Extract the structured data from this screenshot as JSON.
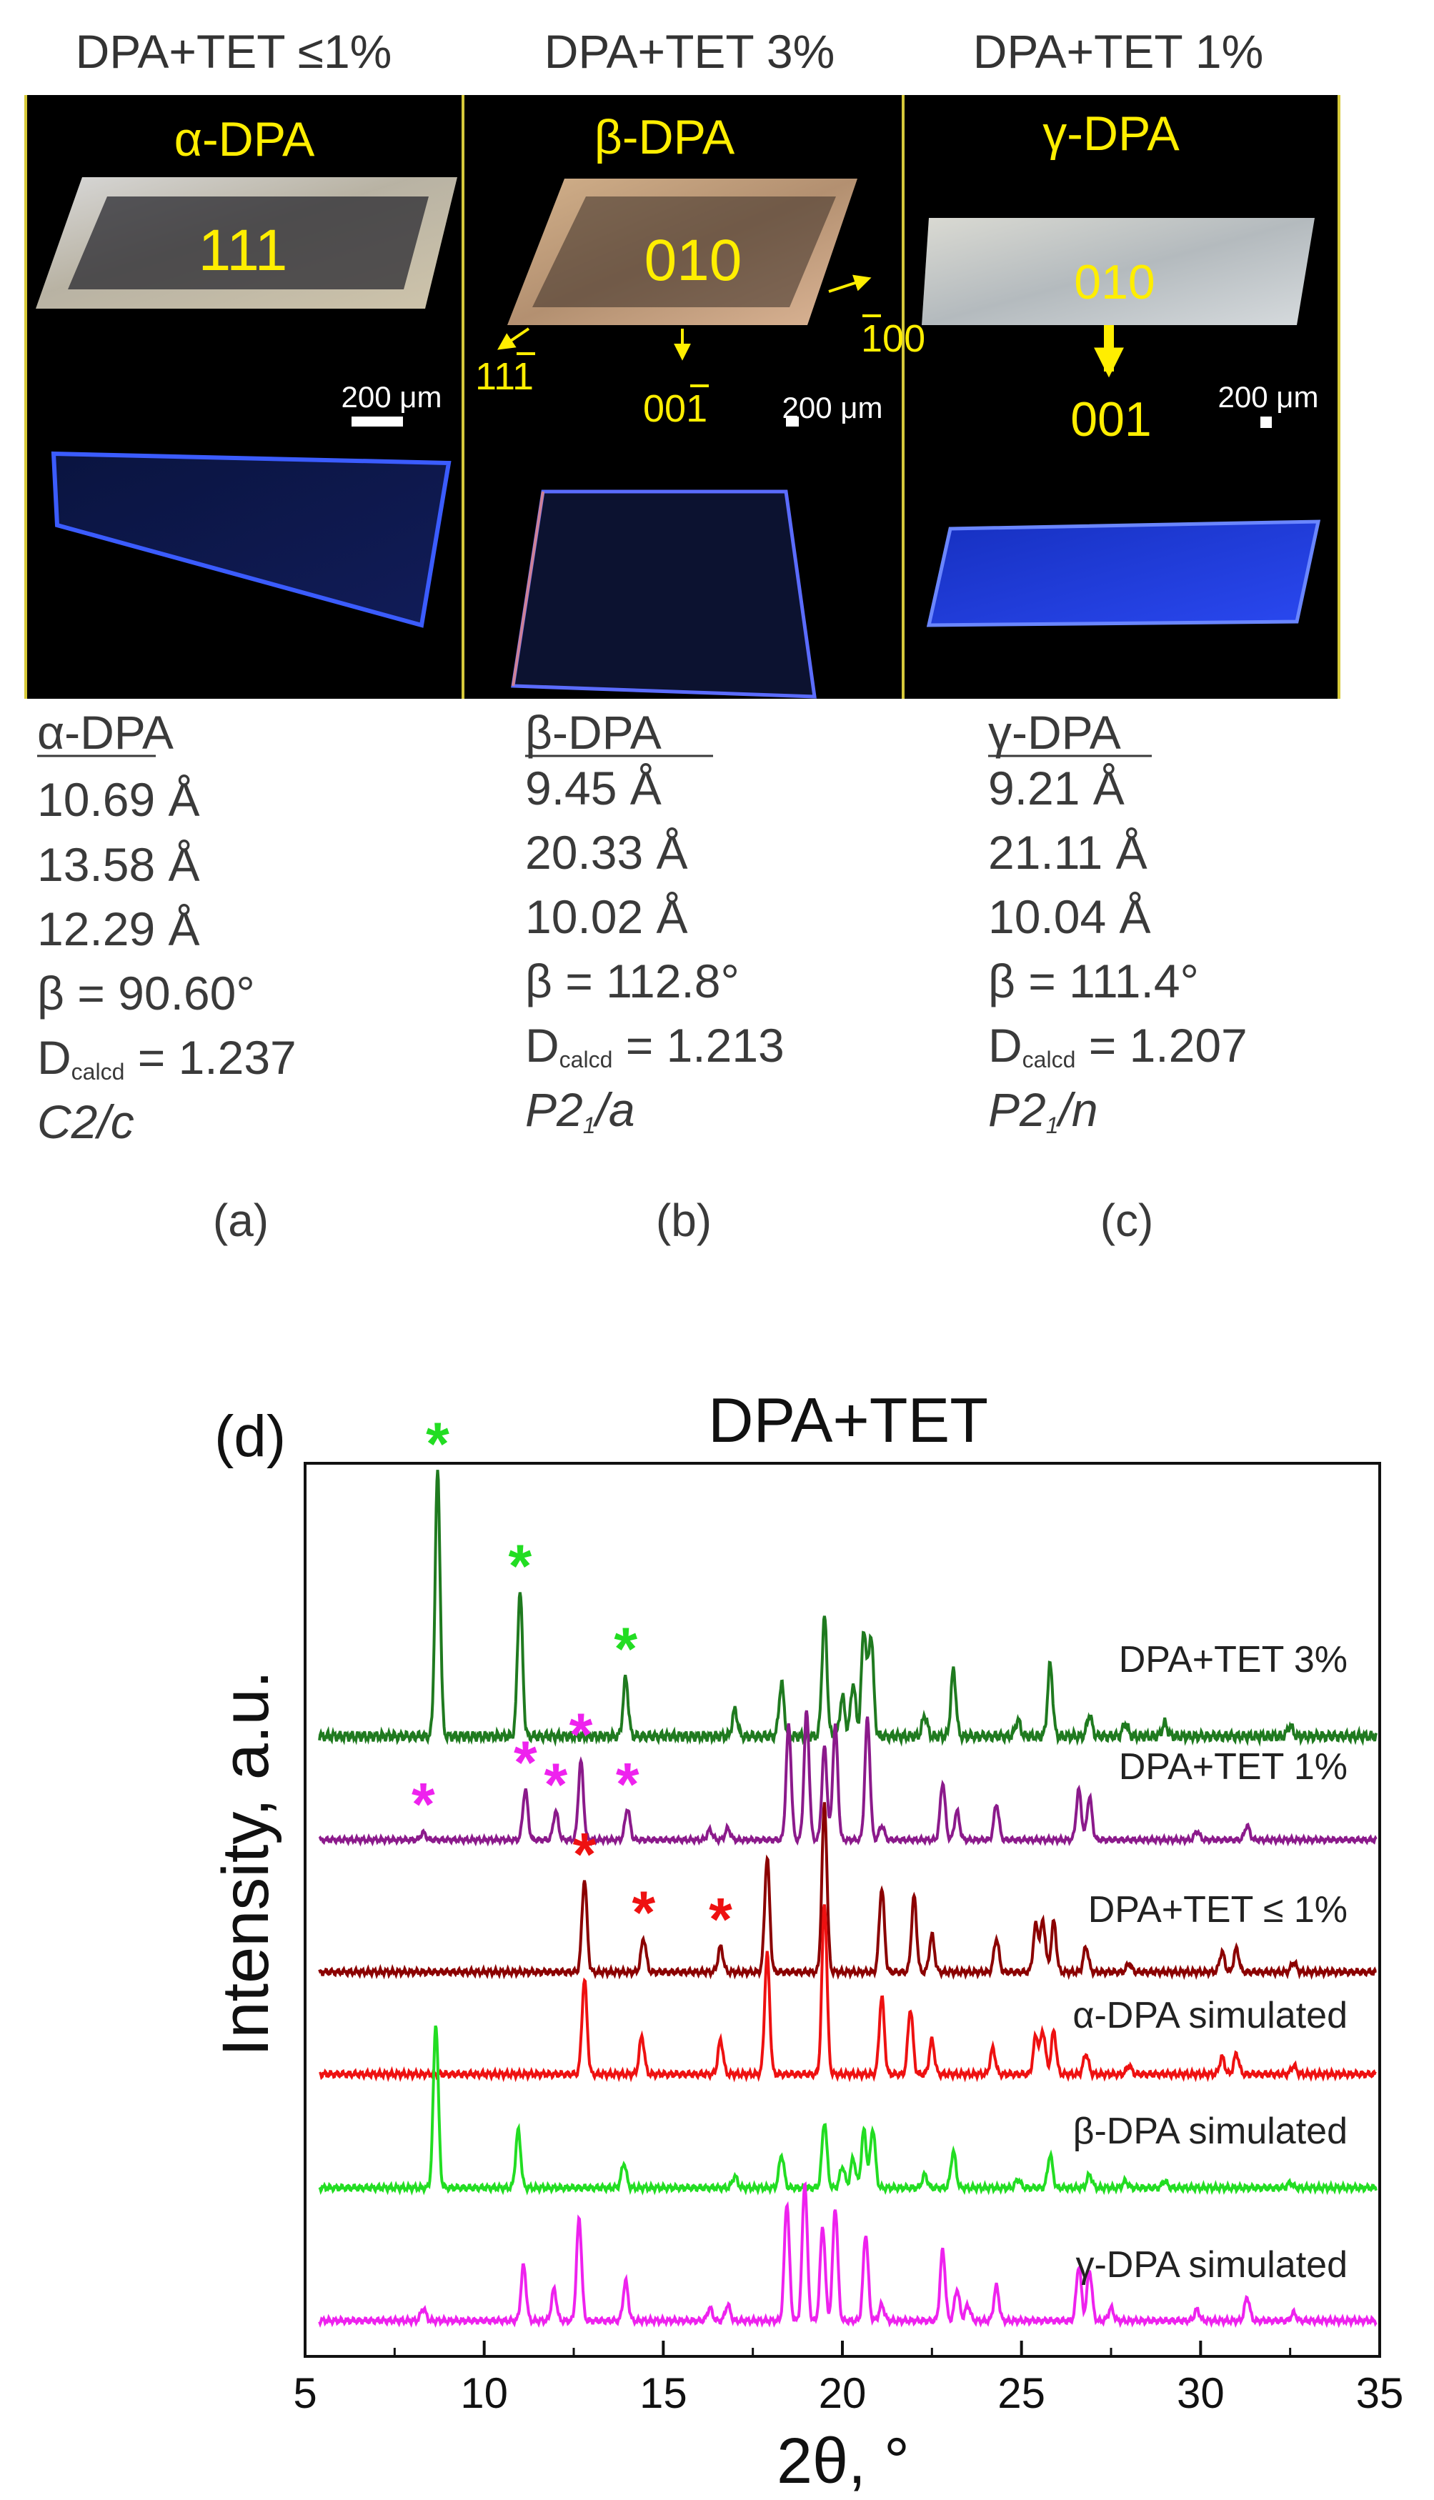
{
  "panels": [
    {
      "condition": "DPA+TET ≤1%",
      "photo_label": "α-DPA",
      "facets": [
        {
          "text": "111"
        }
      ],
      "arrows": [],
      "scale_bar": "200 μm",
      "props_title": "α-DPA",
      "a": "10.69 Å",
      "b": "13.58 Å",
      "c": "12.29 Å",
      "beta": "β = 90.60°",
      "dcalc_prefix": "D",
      "dcalc_sub": "calcd",
      "dcalc_value": " = 1.237",
      "sg_main": "C2/c",
      "sg_sub": "",
      "sg_tail": "",
      "letter": "(a)"
    },
    {
      "condition": "DPA+TET 3%",
      "photo_label": "β-DPA",
      "facets": [
        {
          "text": "010"
        },
        {
          "text": "100"
        },
        {
          "text": "111"
        },
        {
          "text": "001"
        }
      ],
      "scale_bar": "200 μm",
      "props_title": "β-DPA",
      "a": "9.45 Å",
      "b": "20.33 Å",
      "c": "10.02 Å",
      "beta": "β = 112.8°",
      "dcalc_prefix": "D",
      "dcalc_sub": "calcd",
      "dcalc_value": " = 1.213",
      "sg_main": "P2",
      "sg_sub": "1",
      "sg_tail": "/a",
      "letter": "(b)"
    },
    {
      "condition": "DPA+TET 1%",
      "photo_label": "γ-DPA",
      "facets": [
        {
          "text": "010"
        },
        {
          "text": "001"
        }
      ],
      "scale_bar": "200 μm",
      "props_title": "γ-DPA",
      "a": "9.21 Å",
      "b": "21.11 Å",
      "c": "10.04 Å",
      "beta": "β = 111.4°",
      "dcalc_prefix": "D",
      "dcalc_sub": "calcd",
      "dcalc_value": " = 1.207",
      "sg_main": "P2",
      "sg_sub": "1",
      "sg_tail": "/n",
      "letter": "(c)"
    }
  ],
  "chart_data": {
    "type": "line",
    "panel_letter": "(d)",
    "title": "DPA+TET",
    "xlabel": "2θ, °",
    "ylabel": "Intensity, a.u.",
    "xlim": [
      5,
      35
    ],
    "xticks": [
      5,
      10,
      15,
      20,
      25,
      30,
      35
    ],
    "y_axis_ticks": false,
    "series": [
      {
        "name": "DPA+TET 3%",
        "color": "#1f7a1f",
        "peaks": [
          [
            8.7,
            1.0
          ],
          [
            11.0,
            0.55
          ],
          [
            13.95,
            0.22
          ],
          [
            17.0,
            0.1
          ],
          [
            18.3,
            0.2
          ],
          [
            19.5,
            0.45
          ],
          [
            20.0,
            0.15
          ],
          [
            20.3,
            0.2
          ],
          [
            20.6,
            0.4
          ],
          [
            20.8,
            0.38
          ],
          [
            22.3,
            0.08
          ],
          [
            23.1,
            0.25
          ],
          [
            24.9,
            0.06
          ],
          [
            25.8,
            0.27
          ],
          [
            26.9,
            0.08
          ],
          [
            27.9,
            0.05
          ],
          [
            29.0,
            0.05
          ],
          [
            32.5,
            0.04
          ]
        ],
        "markers": [
          {
            "x": 8.7,
            "color": "#22dd22"
          },
          {
            "x": 11.0,
            "color": "#22dd22"
          },
          {
            "x": 13.95,
            "color": "#22dd22"
          }
        ]
      },
      {
        "name": "DPA+TET 1%",
        "color": "#8b1a8b",
        "peaks": [
          [
            8.3,
            0.05
          ],
          [
            11.15,
            0.35
          ],
          [
            12.0,
            0.2
          ],
          [
            12.7,
            0.55
          ],
          [
            14.0,
            0.22
          ],
          [
            16.3,
            0.07
          ],
          [
            16.8,
            0.08
          ],
          [
            18.5,
            0.8
          ],
          [
            19.0,
            0.9
          ],
          [
            19.5,
            0.65
          ],
          [
            19.8,
            0.8
          ],
          [
            20.7,
            0.85
          ],
          [
            21.1,
            0.1
          ],
          [
            22.8,
            0.4
          ],
          [
            23.2,
            0.2
          ],
          [
            24.3,
            0.25
          ],
          [
            26.6,
            0.35
          ],
          [
            26.9,
            0.3
          ],
          [
            29.9,
            0.06
          ],
          [
            31.3,
            0.1
          ]
        ],
        "markers": [
          {
            "x": 8.3,
            "color": "#ee22ee"
          },
          {
            "x": 11.15,
            "color": "#ee22ee"
          },
          {
            "x": 12.0,
            "color": "#ee22ee"
          },
          {
            "x": 12.7,
            "color": "#ee22ee"
          },
          {
            "x": 14.0,
            "color": "#ee22ee"
          }
        ]
      },
      {
        "name": "DPA+TET ≤ 1%",
        "color": "#8b0000",
        "peaks": [
          [
            12.8,
            0.55
          ],
          [
            14.45,
            0.2
          ],
          [
            16.6,
            0.15
          ],
          [
            17.9,
            0.68
          ],
          [
            19.5,
            1.0
          ],
          [
            21.1,
            0.5
          ],
          [
            22.0,
            0.45
          ],
          [
            22.5,
            0.22
          ],
          [
            24.3,
            0.2
          ],
          [
            25.4,
            0.28
          ],
          [
            25.6,
            0.3
          ],
          [
            25.9,
            0.3
          ],
          [
            26.8,
            0.15
          ],
          [
            28.0,
            0.05
          ],
          [
            30.6,
            0.12
          ],
          [
            31.0,
            0.14
          ],
          [
            32.6,
            0.06
          ]
        ],
        "markers": [
          {
            "x": 12.8,
            "color": "#ee1111"
          },
          {
            "x": 14.45,
            "color": "#ee1111"
          },
          {
            "x": 16.6,
            "color": "#ee1111"
          }
        ]
      },
      {
        "name": "α-DPA simulated",
        "color": "#ee1111",
        "peaks": [
          [
            12.8,
            0.55
          ],
          [
            14.4,
            0.22
          ],
          [
            16.6,
            0.2
          ],
          [
            17.9,
            0.7
          ],
          [
            19.5,
            1.0
          ],
          [
            21.1,
            0.45
          ],
          [
            21.9,
            0.38
          ],
          [
            22.5,
            0.2
          ],
          [
            24.2,
            0.15
          ],
          [
            25.4,
            0.22
          ],
          [
            25.6,
            0.25
          ],
          [
            25.9,
            0.25
          ],
          [
            26.8,
            0.12
          ],
          [
            28.0,
            0.05
          ],
          [
            30.6,
            0.1
          ],
          [
            31.0,
            0.12
          ],
          [
            32.6,
            0.05
          ]
        ],
        "markers": []
      },
      {
        "name": "β-DPA simulated",
        "color": "#22dd22",
        "peaks": [
          [
            8.65,
            1.0
          ],
          [
            10.95,
            0.35
          ],
          [
            13.9,
            0.15
          ],
          [
            17.0,
            0.07
          ],
          [
            18.3,
            0.2
          ],
          [
            19.5,
            0.4
          ],
          [
            20.0,
            0.13
          ],
          [
            20.3,
            0.18
          ],
          [
            20.6,
            0.35
          ],
          [
            20.85,
            0.36
          ],
          [
            22.3,
            0.08
          ],
          [
            23.1,
            0.22
          ],
          [
            24.9,
            0.05
          ],
          [
            25.8,
            0.2
          ],
          [
            26.9,
            0.08
          ],
          [
            27.9,
            0.04
          ],
          [
            29.0,
            0.04
          ],
          [
            32.5,
            0.03
          ]
        ],
        "markers": []
      },
      {
        "name": "γ-DPA simulated",
        "color": "#ee22ee",
        "peaks": [
          [
            8.3,
            0.08
          ],
          [
            11.1,
            0.35
          ],
          [
            11.95,
            0.2
          ],
          [
            12.65,
            0.65
          ],
          [
            13.95,
            0.25
          ],
          [
            16.3,
            0.08
          ],
          [
            16.8,
            0.1
          ],
          [
            18.45,
            0.75
          ],
          [
            18.95,
            0.88
          ],
          [
            19.45,
            0.6
          ],
          [
            19.8,
            0.72
          ],
          [
            20.65,
            0.55
          ],
          [
            21.1,
            0.1
          ],
          [
            22.8,
            0.45
          ],
          [
            23.2,
            0.2
          ],
          [
            23.5,
            0.1
          ],
          [
            24.3,
            0.22
          ],
          [
            26.6,
            0.35
          ],
          [
            26.9,
            0.32
          ],
          [
            27.5,
            0.08
          ],
          [
            29.9,
            0.07
          ],
          [
            31.3,
            0.15
          ],
          [
            32.6,
            0.05
          ]
        ],
        "markers": []
      }
    ]
  }
}
